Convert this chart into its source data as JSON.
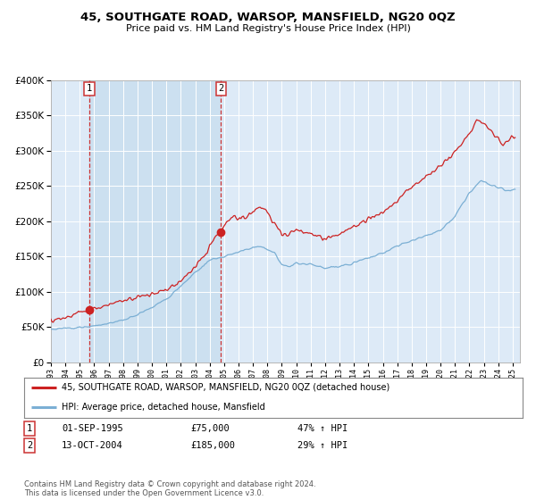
{
  "title": "45, SOUTHGATE ROAD, WARSOP, MANSFIELD, NG20 0QZ",
  "subtitle": "Price paid vs. HM Land Registry's House Price Index (HPI)",
  "legend_line1": "45, SOUTHGATE ROAD, WARSOP, MANSFIELD, NG20 0QZ (detached house)",
  "legend_line2": "HPI: Average price, detached house, Mansfield",
  "annotation1_date": "01-SEP-1995",
  "annotation1_price": "£75,000",
  "annotation1_hpi": "47% ↑ HPI",
  "annotation2_date": "13-OCT-2004",
  "annotation2_price": "£185,000",
  "annotation2_hpi": "29% ↑ HPI",
  "copyright": "Contains HM Land Registry data © Crown copyright and database right 2024.\nThis data is licensed under the Open Government Licence v3.0.",
  "sale1_year": 1995.67,
  "sale1_value": 75000,
  "sale2_year": 2004.79,
  "sale2_value": 185000,
  "hpi_color": "#7bafd4",
  "price_color": "#cc2222",
  "vline_color": "#cc3333",
  "background_plot": "#ddeaf7",
  "background_shaded": "#cce0f0",
  "grid_color": "#ffffff",
  "hatch_color": "#b0c8e0",
  "ylim": [
    0,
    400000
  ],
  "xlim_start": 1993,
  "xlim_end": 2025.5,
  "fig_width": 6.0,
  "fig_height": 5.6
}
